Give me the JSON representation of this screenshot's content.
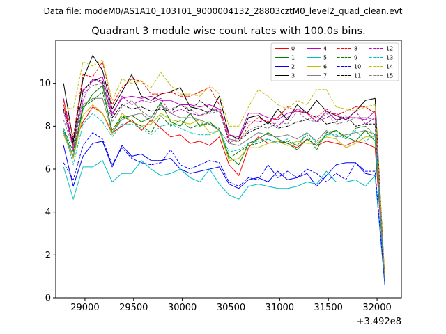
{
  "suptitle": "Data file: modeM0/AS1A10_103T01_9000004132_28803cztM0_level2_quad_clean.evt",
  "chart_data": {
    "type": "line",
    "title": "Quadrant 3 module wise count rates with 100.0s bins.",
    "xlabel": "",
    "ylabel": "",
    "x_offset_label": "+3.492e8",
    "xlim": [
      28700,
      32250
    ],
    "ylim": [
      0,
      12
    ],
    "xticks": [
      29000,
      29500,
      30000,
      30500,
      31000,
      31500,
      32000
    ],
    "xtick_labels": [
      "29000",
      "29500",
      "30000",
      "30500",
      "31000",
      "31500",
      "32000"
    ],
    "yticks": [
      0,
      2,
      4,
      6,
      8,
      10
    ],
    "ytick_labels": [
      "0",
      "2",
      "4",
      "6",
      "8",
      "10"
    ],
    "legend_position": "top-right",
    "x": [
      28780,
      28880,
      28980,
      29080,
      29180,
      29280,
      29380,
      29480,
      29580,
      29680,
      29780,
      29880,
      29980,
      30080,
      30180,
      30280,
      30380,
      30480,
      30580,
      30680,
      30780,
      30880,
      30980,
      31080,
      31180,
      31280,
      31380,
      31480,
      31580,
      31680,
      31780,
      31880,
      31980,
      32080
    ],
    "series": [
      {
        "name": "0",
        "color": "#ff0000",
        "dash": "solid",
        "values": [
          9.0,
          7.1,
          8.2,
          8.9,
          8.6,
          7.7,
          8.0,
          8.3,
          7.8,
          8.3,
          7.9,
          7.5,
          7.6,
          7.2,
          7.3,
          7.1,
          7.5,
          6.2,
          5.7,
          7.0,
          7.5,
          7.2,
          7.3,
          7.2,
          7.0,
          7.4,
          7.1,
          7.3,
          7.2,
          7.1,
          7.3,
          7.2,
          7.0,
          0.8
        ]
      },
      {
        "name": "1",
        "color": "#008000",
        "dash": "solid",
        "values": [
          7.8,
          6.6,
          8.8,
          9.5,
          9.9,
          7.7,
          8.4,
          8.5,
          8.2,
          8.4,
          9.1,
          8.2,
          8.0,
          8.6,
          8.0,
          8.2,
          7.8,
          6.6,
          6.2,
          7.2,
          7.4,
          7.7,
          7.4,
          7.2,
          6.9,
          7.4,
          7.1,
          7.6,
          7.8,
          7.5,
          7.3,
          7.8,
          7.3,
          0.8
        ]
      },
      {
        "name": "2",
        "color": "#0000ff",
        "dash": "solid",
        "values": [
          7.1,
          5.2,
          6.6,
          7.2,
          7.3,
          6.1,
          7.1,
          6.6,
          6.7,
          6.4,
          6.4,
          6.5,
          6.0,
          5.8,
          5.9,
          6.0,
          6.1,
          5.3,
          5.1,
          5.5,
          5.6,
          5.4,
          5.9,
          5.5,
          5.6,
          5.8,
          5.2,
          5.7,
          6.2,
          6.3,
          6.3,
          5.8,
          5.7,
          0.6
        ]
      },
      {
        "name": "3",
        "color": "#000000",
        "dash": "solid",
        "values": [
          10.0,
          7.3,
          10.2,
          11.3,
          10.6,
          8.8,
          9.6,
          10.4,
          9.4,
          9.2,
          9.5,
          9.6,
          9.8,
          8.9,
          8.8,
          8.6,
          9.4,
          7.6,
          7.4,
          8.4,
          8.5,
          8.1,
          8.8,
          8.3,
          9.0,
          8.6,
          9.2,
          8.7,
          8.5,
          8.3,
          8.7,
          9.2,
          9.3,
          0.8
        ]
      },
      {
        "name": "4",
        "color": "#bf00bf",
        "dash": "solid",
        "values": [
          9.3,
          6.9,
          9.7,
          10.1,
          10.3,
          8.6,
          9.3,
          9.4,
          9.3,
          9.4,
          9.2,
          9.2,
          9.0,
          9.0,
          8.9,
          9.0,
          8.8,
          7.6,
          7.5,
          8.6,
          8.6,
          8.4,
          8.3,
          8.6,
          8.7,
          8.6,
          8.2,
          8.7,
          8.3,
          8.4,
          8.4,
          8.3,
          8.7,
          0.9
        ]
      },
      {
        "name": "5",
        "color": "#00bfbf",
        "dash": "solid",
        "values": [
          6.1,
          4.6,
          6.1,
          6.1,
          6.4,
          5.4,
          5.8,
          5.8,
          6.4,
          6.0,
          5.7,
          5.8,
          6.0,
          5.6,
          5.4,
          6.0,
          5.3,
          4.8,
          4.6,
          5.2,
          5.3,
          5.2,
          5.1,
          5.1,
          5.2,
          5.4,
          5.3,
          5.9,
          5.4,
          5.4,
          5.5,
          5.2,
          5.7,
          0.7
        ]
      },
      {
        "name": "6",
        "color": "#bfbf00",
        "dash": "solid",
        "values": [
          7.6,
          6.5,
          8.5,
          9.0,
          8.6,
          7.6,
          8.6,
          8.2,
          8.0,
          8.1,
          8.6,
          8.3,
          8.2,
          8.1,
          8.3,
          7.7,
          7.8,
          6.4,
          6.5,
          7.0,
          7.0,
          7.2,
          7.3,
          7.1,
          7.3,
          7.2,
          7.2,
          7.5,
          7.4,
          7.0,
          7.2,
          7.5,
          7.5,
          0.8
        ]
      },
      {
        "name": "7",
        "color": "#808080",
        "dash": "solid",
        "values": [
          7.7,
          6.6,
          9.0,
          9.3,
          9.3,
          7.7,
          8.3,
          8.5,
          8.6,
          8.2,
          9.0,
          8.6,
          8.4,
          8.4,
          8.3,
          8.1,
          7.8,
          7.2,
          7.1,
          7.4,
          7.7,
          7.6,
          7.5,
          7.6,
          7.4,
          7.7,
          7.3,
          7.8,
          7.5,
          7.6,
          7.7,
          7.8,
          7.6,
          0.8
        ]
      },
      {
        "name": "8",
        "color": "#ff0000",
        "dash": "dashed",
        "values": [
          9.2,
          7.5,
          10.4,
          10.3,
          11.0,
          9.0,
          9.8,
          10.2,
          10.1,
          9.5,
          9.5,
          9.6,
          9.4,
          9.4,
          9.6,
          9.8,
          9.0,
          7.4,
          7.3,
          8.0,
          8.4,
          8.2,
          8.4,
          8.9,
          8.7,
          8.6,
          8.4,
          8.8,
          8.5,
          8.7,
          8.9,
          8.9,
          8.6,
          0.9
        ]
      },
      {
        "name": "9",
        "color": "#008000",
        "dash": "dashed",
        "values": [
          7.9,
          6.8,
          8.9,
          9.2,
          9.6,
          7.8,
          8.5,
          8.2,
          8.0,
          7.7,
          8.5,
          8.0,
          8.3,
          7.9,
          8.1,
          8.1,
          7.9,
          6.5,
          6.8,
          7.1,
          7.2,
          7.4,
          7.2,
          7.3,
          7.1,
          7.6,
          6.9,
          7.7,
          7.8,
          7.4,
          7.9,
          8.0,
          7.6,
          0.8
        ]
      },
      {
        "name": "10",
        "color": "#0000ff",
        "dash": "dashed",
        "values": [
          6.3,
          5.5,
          7.1,
          7.7,
          7.4,
          6.2,
          7.0,
          6.5,
          6.3,
          6.2,
          6.3,
          6.9,
          6.2,
          6.0,
          6.2,
          6.4,
          6.3,
          5.4,
          5.2,
          5.6,
          5.5,
          6.2,
          5.6,
          5.9,
          5.6,
          6.0,
          5.8,
          5.4,
          5.8,
          5.5,
          6.3,
          5.9,
          5.9,
          0.7
        ]
      },
      {
        "name": "11",
        "color": "#000000",
        "dash": "dashed",
        "values": [
          8.8,
          7.2,
          9.6,
          10.2,
          10.1,
          8.4,
          9.0,
          8.8,
          8.9,
          8.7,
          8.8,
          8.7,
          9.0,
          8.7,
          9.2,
          8.8,
          8.7,
          7.3,
          7.3,
          7.7,
          7.9,
          8.2,
          7.9,
          8.0,
          8.2,
          8.3,
          8.5,
          8.1,
          8.2,
          8.5,
          8.0,
          8.1,
          8.1,
          0.8
        ]
      },
      {
        "name": "12",
        "color": "#bf00bf",
        "dash": "dashed",
        "values": [
          8.7,
          7.0,
          9.2,
          10.2,
          10.0,
          8.5,
          9.4,
          9.0,
          9.2,
          9.1,
          9.3,
          8.6,
          8.8,
          8.6,
          8.5,
          8.7,
          8.8,
          7.2,
          7.5,
          8.2,
          8.2,
          8.3,
          8.0,
          8.4,
          8.8,
          8.6,
          8.2,
          8.4,
          8.6,
          8.3,
          8.7,
          8.1,
          8.4,
          0.9
        ]
      },
      {
        "name": "13",
        "color": "#00bfbf",
        "dash": "dashed",
        "values": [
          7.9,
          6.2,
          8.1,
          8.6,
          8.2,
          7.5,
          8.1,
          8.1,
          7.9,
          7.6,
          8.0,
          8.1,
          7.9,
          7.7,
          7.6,
          7.6,
          7.8,
          6.8,
          6.9,
          7.2,
          7.3,
          7.4,
          7.2,
          7.4,
          7.1,
          7.7,
          7.2,
          7.6,
          7.6,
          7.4,
          7.8,
          7.3,
          7.6,
          0.8
        ]
      },
      {
        "name": "14",
        "color": "#bfbf00",
        "dash": "dashed",
        "values": [
          8.9,
          8.8,
          11.0,
          10.8,
          11.1,
          9.2,
          10.2,
          10.0,
          10.1,
          9.8,
          10.5,
          9.9,
          9.5,
          9.5,
          9.4,
          9.9,
          9.5,
          8.0,
          8.0,
          8.9,
          9.7,
          9.4,
          9.0,
          8.8,
          9.2,
          9.0,
          9.7,
          9.7,
          8.9,
          8.8,
          8.7,
          8.9,
          9.0,
          1.0
        ]
      },
      {
        "name": "15",
        "color": "#808080",
        "dash": "dashed",
        "values": [
          8.3,
          7.0,
          9.5,
          9.9,
          10.0,
          8.2,
          8.9,
          9.2,
          8.7,
          8.4,
          8.9,
          8.8,
          9.0,
          8.8,
          8.5,
          8.6,
          8.7,
          7.4,
          7.3,
          7.8,
          8.0,
          7.9,
          8.2,
          8.1,
          8.7,
          8.3,
          8.2,
          8.6,
          8.1,
          8.2,
          8.4,
          8.4,
          8.3,
          0.8
        ]
      }
    ]
  }
}
